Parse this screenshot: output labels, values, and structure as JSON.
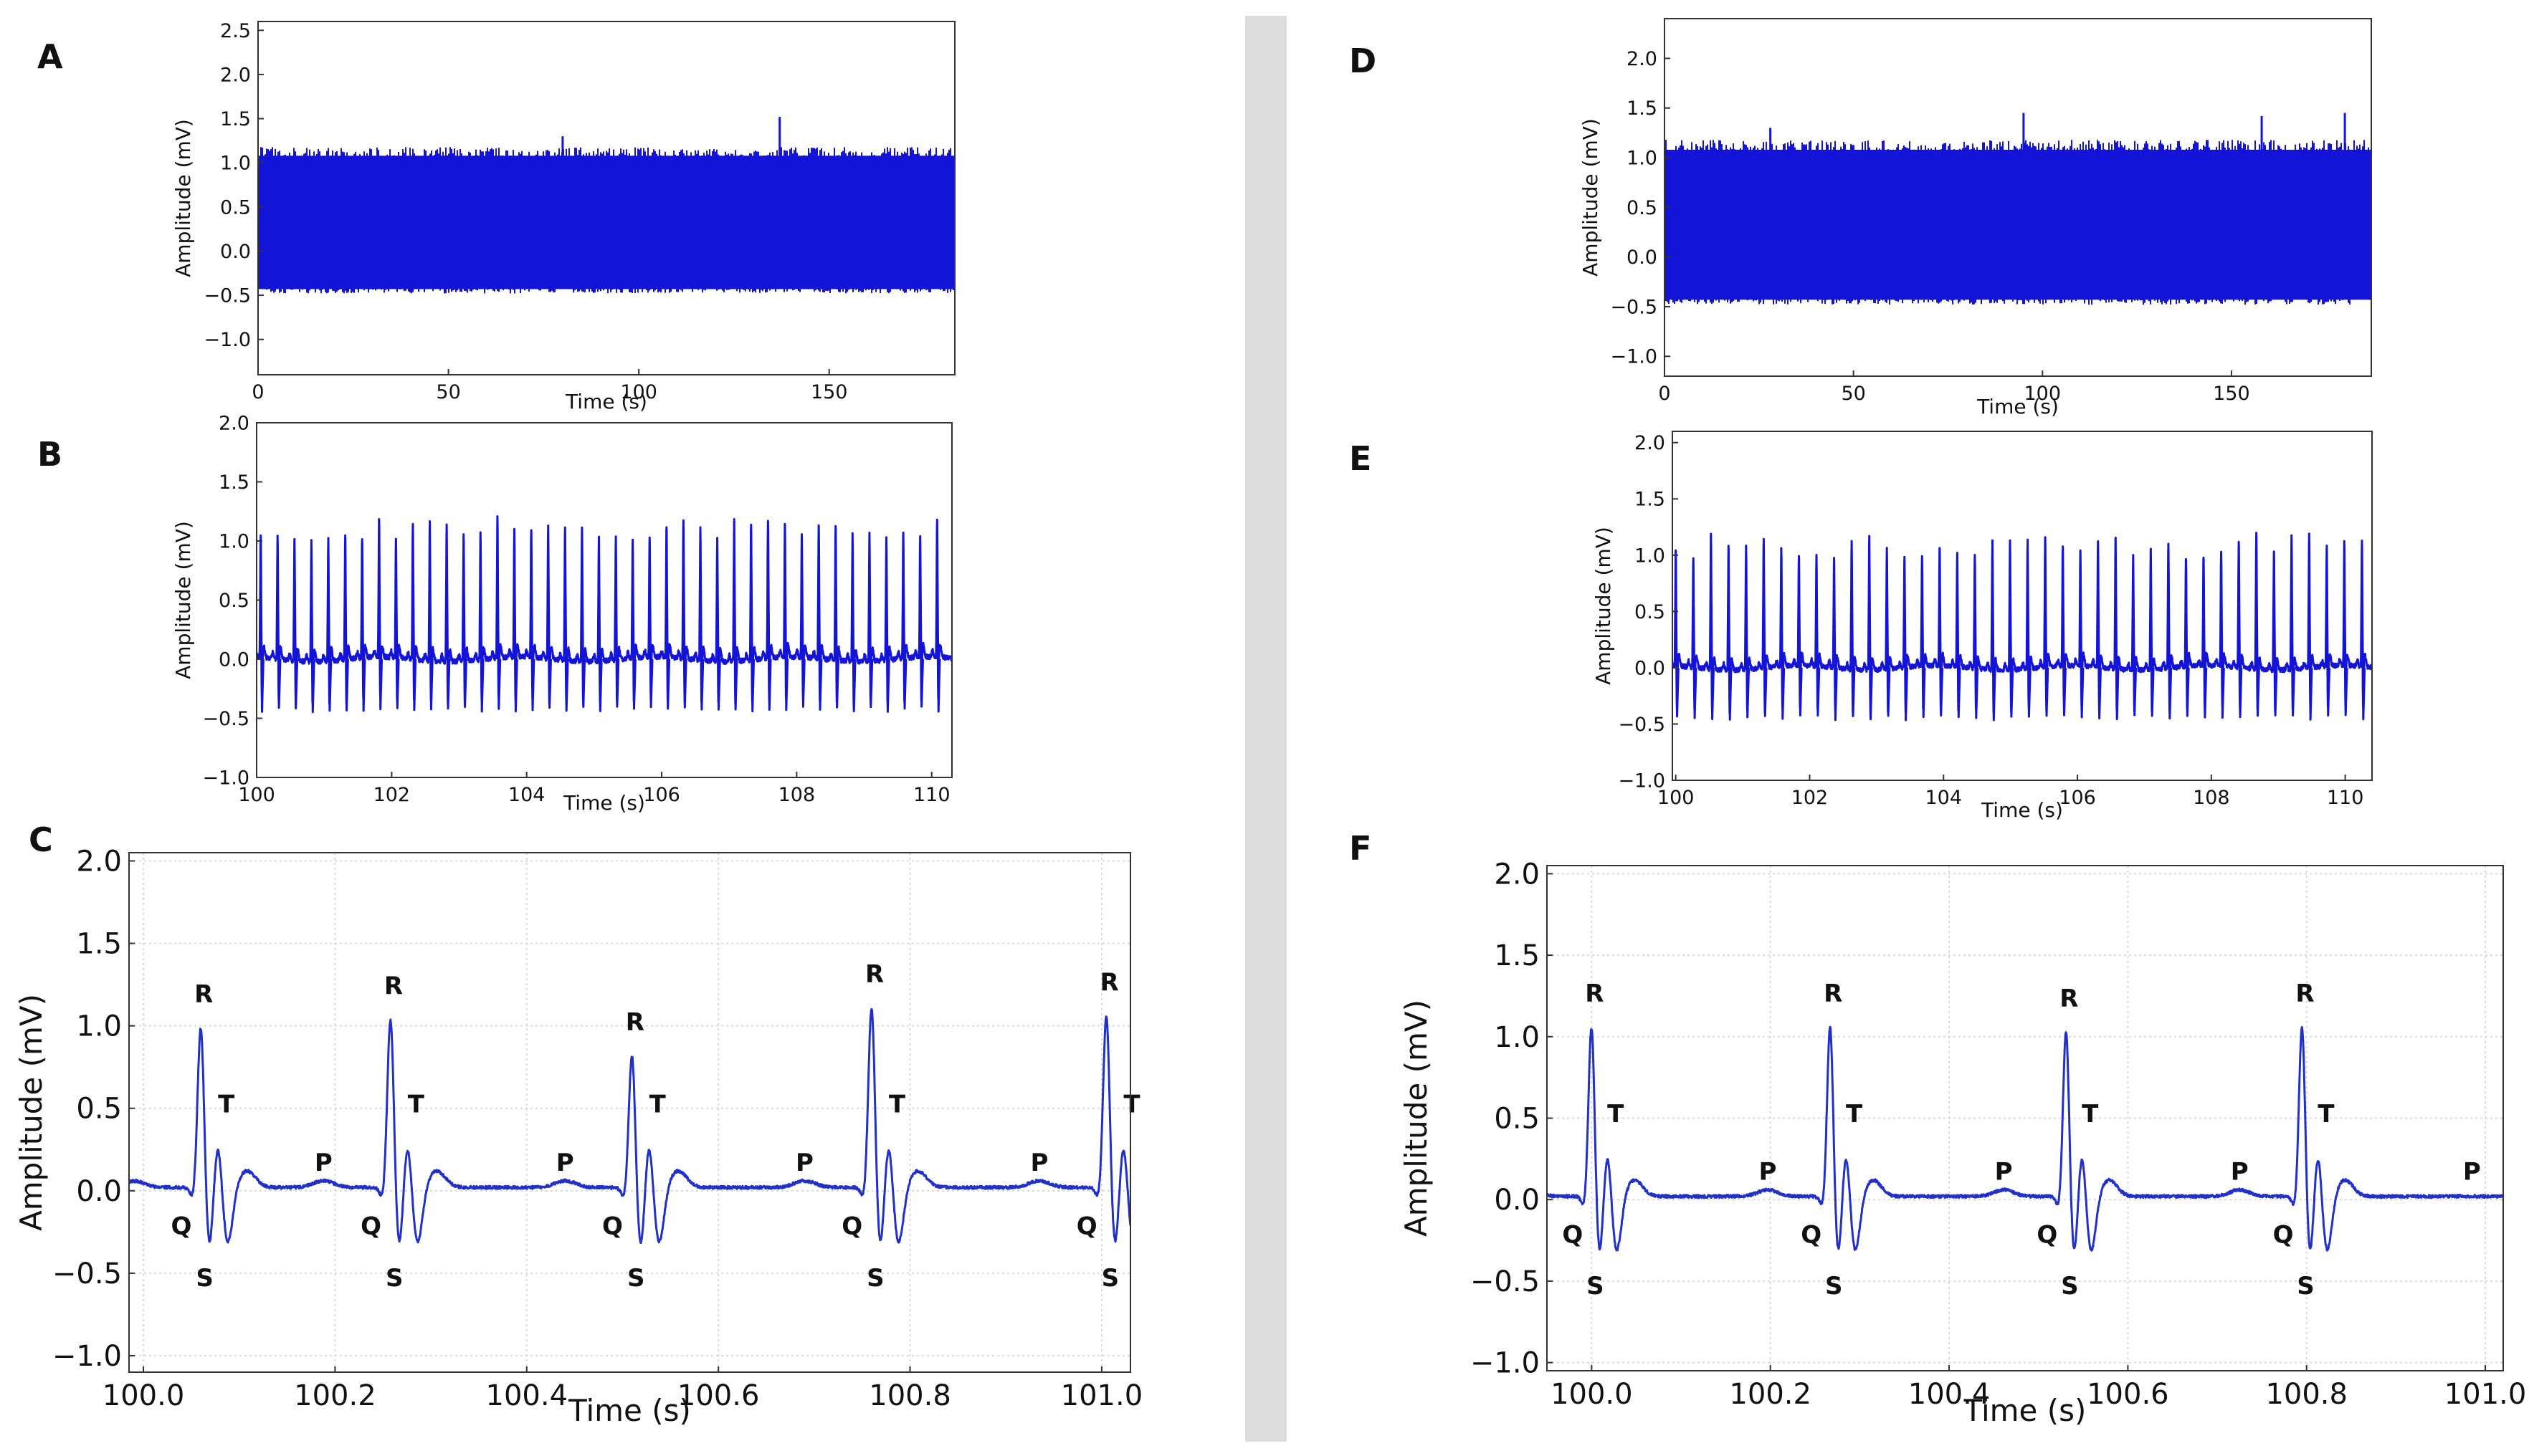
{
  "colors": {
    "trace": "#1414d8",
    "trace_zoom": "#2030c8",
    "grid": "#d9d9d9",
    "divider": "#dcdcdc"
  },
  "panels": {
    "A": {
      "letter": "A"
    },
    "B": {
      "letter": "B"
    },
    "C": {
      "letter": "C"
    },
    "D": {
      "letter": "D"
    },
    "E": {
      "letter": "E"
    },
    "F": {
      "letter": "F"
    }
  },
  "chart_data": [
    {
      "id": "A",
      "type": "line",
      "title": "",
      "xlabel": "Time (s)",
      "ylabel": "Amplitude (mV)",
      "xlim": [
        0,
        183
      ],
      "ylim": [
        -1.4,
        2.6
      ],
      "xticks": [
        0,
        50,
        100,
        150
      ],
      "yticks": [
        -1.0,
        -0.5,
        0.0,
        0.5,
        1.0,
        1.5,
        2.0,
        2.5
      ],
      "ytick_labels": [
        "−1.0",
        "−0.5",
        "0.0",
        "0.5",
        "1.0",
        "1.5",
        "2.0",
        "2.5"
      ],
      "grid": false,
      "description_values": {
        "signal_band_min": -0.45,
        "signal_band_max": 1.1,
        "spikes": [
          {
            "x": 80,
            "y": 1.3
          },
          {
            "x": 137,
            "y": 1.52
          }
        ]
      }
    },
    {
      "id": "B",
      "type": "line",
      "title": "",
      "xlabel": "Time (s)",
      "ylabel": "Amplitude (mV)",
      "xlim": [
        100,
        110.3
      ],
      "ylim": [
        -1.0,
        2.0
      ],
      "xticks": [
        100,
        102,
        104,
        106,
        108,
        110
      ],
      "yticks": [
        -1.0,
        -0.5,
        0.0,
        0.5,
        1.0,
        1.5,
        2.0
      ],
      "ytick_labels": [
        "−1.0",
        "−0.5",
        "0.0",
        "0.5",
        "1.0",
        "1.5",
        "2.0"
      ],
      "grid": false,
      "beats_start": 100.06,
      "rr_interval": 0.2505,
      "r_peak_range": [
        1.0,
        1.2
      ],
      "s_trough": -0.4
    },
    {
      "id": "C",
      "type": "line",
      "title": "",
      "xlabel": "Time (s)",
      "ylabel": "Amplitude (mV)",
      "xlim": [
        99.985,
        101.03
      ],
      "ylim": [
        -1.1,
        2.05
      ],
      "xticks": [
        100.0,
        100.2,
        100.4,
        100.6,
        100.8,
        101.0
      ],
      "yticks": [
        -1.0,
        -0.5,
        0.0,
        0.5,
        1.0,
        1.5,
        2.0
      ],
      "ytick_labels": [
        "−1.0",
        "−0.5",
        "0.0",
        "0.5",
        "1.0",
        "1.5",
        "2.0"
      ],
      "grid": true,
      "beats": [
        {
          "r_time": 100.06,
          "r_peak": 1.03
        },
        {
          "r_time": 100.258,
          "r_peak": 1.08
        },
        {
          "r_time": 100.51,
          "r_peak": 0.86
        },
        {
          "r_time": 100.76,
          "r_peak": 1.15
        },
        {
          "r_time": 101.005,
          "r_peak": 1.1
        }
      ],
      "annotations": [
        "R",
        "T",
        "Q",
        "S",
        "P"
      ]
    },
    {
      "id": "D",
      "type": "line",
      "title": "",
      "xlabel": "Time (s)",
      "ylabel": "Amplitude (mV)",
      "xlim": [
        0,
        187
      ],
      "ylim": [
        -1.2,
        2.4
      ],
      "xticks": [
        0,
        50,
        100,
        150
      ],
      "yticks": [
        -1.0,
        -0.5,
        0.0,
        0.5,
        1.0,
        1.5,
        2.0
      ],
      "ytick_labels": [
        "−1.0",
        "−0.5",
        "0.0",
        "0.5",
        "1.0",
        "1.5",
        "2.0"
      ],
      "grid": false,
      "description_values": {
        "signal_band_min": -0.45,
        "signal_band_max": 1.1,
        "spikes": [
          {
            "x": 28,
            "y": 1.3
          },
          {
            "x": 95,
            "y": 1.45
          },
          {
            "x": 158,
            "y": 1.42
          },
          {
            "x": 180,
            "y": 1.45
          }
        ]
      }
    },
    {
      "id": "E",
      "type": "line",
      "title": "",
      "xlabel": "Time (s)",
      "ylabel": "Amplitude (mV)",
      "xlim": [
        99.95,
        110.4
      ],
      "ylim": [
        -1.0,
        2.1
      ],
      "xticks": [
        100,
        102,
        104,
        106,
        108,
        110
      ],
      "yticks": [
        -1.0,
        -0.5,
        0.0,
        0.5,
        1.0,
        1.5,
        2.0
      ],
      "ytick_labels": [
        "−1.0",
        "−0.5",
        "0.0",
        "0.5",
        "1.0",
        "1.5",
        "2.0"
      ],
      "grid": false,
      "beats_start": 100.0,
      "rr_interval": 0.2628,
      "r_peak_range": [
        0.95,
        1.2
      ],
      "s_trough": -0.42
    },
    {
      "id": "F",
      "type": "line",
      "title": "",
      "xlabel": "Time (s)",
      "ylabel": "Amplitude (mV)",
      "xlim": [
        99.95,
        101.02
      ],
      "ylim": [
        -1.05,
        2.05
      ],
      "xticks": [
        100.0,
        100.2,
        100.4,
        100.6,
        100.8,
        101.0
      ],
      "yticks": [
        -1.0,
        -0.5,
        0.0,
        0.5,
        1.0,
        1.5,
        2.0
      ],
      "ytick_labels": [
        "−1.0",
        "−0.5",
        "0.0",
        "0.5",
        "1.0",
        "1.5",
        "2.0"
      ],
      "grid": true,
      "beats": [
        {
          "r_time": 100.0,
          "r_peak": 1.1
        },
        {
          "r_time": 100.267,
          "r_peak": 1.1
        },
        {
          "r_time": 100.531,
          "r_peak": 1.07
        },
        {
          "r_time": 100.795,
          "r_peak": 1.1
        }
      ],
      "annotations": [
        "R",
        "T",
        "Q",
        "S",
        "P"
      ]
    }
  ]
}
